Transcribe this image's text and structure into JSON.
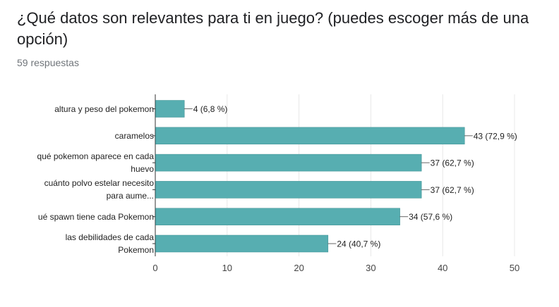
{
  "header": {
    "title": "¿Qué datos son relevantes para ti en juego? (puedes escoger más de una opción)",
    "responses": "59 respuestas"
  },
  "chart_data": {
    "type": "bar",
    "orientation": "horizontal",
    "categories": [
      [
        "altura y peso del pokemon"
      ],
      [
        "caramelos"
      ],
      [
        "qué pokemon aparece en cada",
        "huevo"
      ],
      [
        "cuánto polvo estelar necesito",
        "para aume..."
      ],
      [
        "ué spawn tiene cada Pokemon"
      ],
      [
        "las debilidades de cada",
        "Pokemon"
      ]
    ],
    "values": [
      4,
      43,
      37,
      37,
      34,
      24
    ],
    "data_labels": [
      "4 (6,8 %)",
      "43 (72,9 %)",
      "37 (62,7 %)",
      "37 (62,7 %)",
      "34 (57,6 %)",
      "24 (40,7 %)"
    ],
    "xlim": [
      0,
      50
    ],
    "xticks": [
      0,
      10,
      20,
      30,
      40,
      50
    ],
    "grid": true,
    "colors": {
      "bar": "#57aeb1",
      "bar_edge": "#3d8f92",
      "grid": "#e8e8e8",
      "axis": "#333333"
    }
  }
}
